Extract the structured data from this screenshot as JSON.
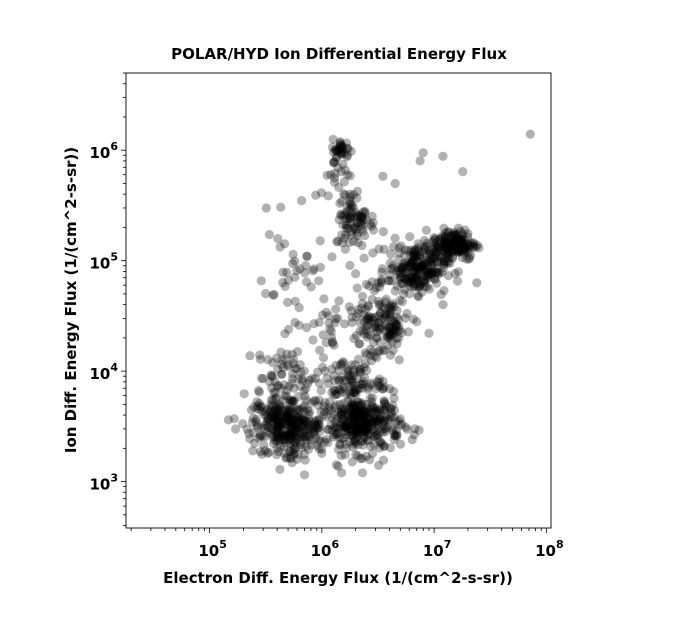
{
  "chart_data": {
    "type": "scatter",
    "title": "POLAR/HYD  Ion Differential Energy Flux",
    "xlabel": "Electron Diff. Energy Flux (1/(cm^2-s-sr))",
    "ylabel": "Ion Diff. Energy Flux (1/(cm^2-s-sr))",
    "xscale": "log",
    "yscale": "log",
    "xlim": [
      18000,
      110000000
    ],
    "ylim": [
      380,
      5000000
    ],
    "xticks": [
      {
        "base": "10",
        "exp": "5",
        "value": 100000
      },
      {
        "base": "10",
        "exp": "6",
        "value": 1000000
      },
      {
        "base": "10",
        "exp": "7",
        "value": 10000000
      },
      {
        "base": "10",
        "exp": "8",
        "value": 100000000
      }
    ],
    "yticks": [
      {
        "base": "10",
        "exp": "3",
        "value": 1000
      },
      {
        "base": "10",
        "exp": "4",
        "value": 10000
      },
      {
        "base": "10",
        "exp": "5",
        "value": 100000
      },
      {
        "base": "10",
        "exp": "6",
        "value": 1000000
      }
    ],
    "marker_color": "#000000",
    "marker_opacity": 0.3,
    "grid": false,
    "clusters": [
      {
        "x": 500000,
        "y": 3300,
        "x_spread": 0.16,
        "y_spread": 0.13,
        "count": 320
      },
      {
        "x": 2300000,
        "y": 3300,
        "x_spread": 0.17,
        "y_spread": 0.13,
        "count": 340
      },
      {
        "x": 7000000,
        "y": 85000,
        "x_spread": 0.13,
        "y_spread": 0.11,
        "count": 220
      },
      {
        "x": 15000000,
        "y": 140000,
        "x_spread": 0.1,
        "y_spread": 0.07,
        "count": 160
      },
      {
        "x": 1500000,
        "y": 1000000,
        "x_spread": 0.04,
        "y_spread": 0.05,
        "count": 35
      },
      {
        "x": 2000000,
        "y": 230000,
        "x_spread": 0.09,
        "y_spread": 0.12,
        "count": 80
      },
      {
        "x": 2800000,
        "y": 30000,
        "x_spread": 0.14,
        "y_spread": 0.22,
        "count": 110
      },
      {
        "x": 500000,
        "y": 9000,
        "x_spread": 0.14,
        "y_spread": 0.12,
        "count": 60
      },
      {
        "x": 1800000,
        "y": 8000,
        "x_spread": 0.14,
        "y_spread": 0.1,
        "count": 80
      },
      {
        "x": 4000000,
        "y": 25000,
        "x_spread": 0.06,
        "y_spread": 0.1,
        "count": 50
      },
      {
        "x": 550000,
        "y": 60000,
        "x_spread": 0.14,
        "y_spread": 0.35,
        "count": 45
      },
      {
        "x": 1400000,
        "y": 500000,
        "x_spread": 0.1,
        "y_spread": 0.12,
        "count": 20
      },
      {
        "x": 1100000,
        "y": 25000,
        "x_spread": 0.08,
        "y_spread": 0.12,
        "count": 18
      }
    ],
    "points": [
      {
        "x": 72000000,
        "y": 1400000
      },
      {
        "x": 12000000,
        "y": 880000
      },
      {
        "x": 18000000,
        "y": 640000
      },
      {
        "x": 7500000,
        "y": 800000
      },
      {
        "x": 8000000,
        "y": 950000
      },
      {
        "x": 3500000,
        "y": 580000
      },
      {
        "x": 4500000,
        "y": 500000
      },
      {
        "x": 1300000,
        "y": 560000
      },
      {
        "x": 320000,
        "y": 300000
      },
      {
        "x": 430000,
        "y": 305000
      },
      {
        "x": 660000,
        "y": 350000
      },
      {
        "x": 24000000,
        "y": 63000
      },
      {
        "x": 12000000,
        "y": 40000
      },
      {
        "x": 9000000,
        "y": 22000
      },
      {
        "x": 7000000,
        "y": 28000
      },
      {
        "x": 290000,
        "y": 8600
      },
      {
        "x": 280000,
        "y": 14000
      },
      {
        "x": 700000,
        "y": 1150
      },
      {
        "x": 1500000,
        "y": 1200
      },
      {
        "x": 2300000,
        "y": 1200
      },
      {
        "x": 3200000,
        "y": 1400
      },
      {
        "x": 330000,
        "y": 1800
      },
      {
        "x": 560000,
        "y": 1750
      },
      {
        "x": 1000000,
        "y": 1800
      },
      {
        "x": 4500000,
        "y": 2600
      },
      {
        "x": 4200000,
        "y": 4200
      },
      {
        "x": 5600000,
        "y": 85000
      },
      {
        "x": 16000000,
        "y": 170000
      },
      {
        "x": 20000000,
        "y": 175000
      }
    ]
  }
}
